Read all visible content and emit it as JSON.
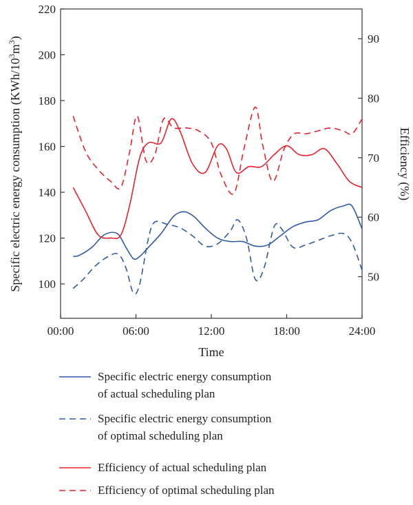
{
  "chart_data": {
    "type": "line",
    "xlabel": "Time",
    "ylabel_left": "Specific electric energy consumption (KWh/10³m³)",
    "ylabel_left_parts": {
      "main": "Specific electric energy consumption (KWh/10",
      "sup1": "3",
      "mid": "m",
      "sup2": "3",
      "end": ")"
    },
    "ylabel_right": "Efficiency (%)",
    "x_ticks": [
      "00:00",
      "06:00",
      "12:00",
      "18:00",
      "24:00"
    ],
    "x_tick_hours": [
      0,
      6,
      12,
      18,
      24
    ],
    "xlim": [
      0,
      24
    ],
    "ylim_left": [
      85,
      220
    ],
    "ylim_right": [
      43,
      95
    ],
    "y_ticks_left": [
      100,
      120,
      140,
      160,
      180,
      200,
      220
    ],
    "y_ticks_right": [
      50,
      60,
      70,
      80,
      90
    ],
    "series": [
      {
        "name": "Specific electric energy consumption of actual scheduling plan",
        "legend_lines": [
          "Specific electric energy consumption",
          "of actual scheduling plan"
        ],
        "axis": "left",
        "color": "#2f59a8",
        "dash": "solid",
        "x": [
          1,
          1.5,
          2.5,
          3.5,
          4.5,
          5.2,
          5.8,
          6.3,
          7.0,
          8.0,
          9.0,
          9.8,
          10.6,
          11.5,
          12.5,
          13.5,
          14.5,
          15.5,
          16.5,
          17.5,
          18.5,
          19.5,
          20.5,
          21.5,
          22.5,
          23.2,
          24
        ],
        "y": [
          112,
          112.5,
          116,
          121.5,
          122,
          116,
          111,
          112,
          116,
          122,
          129.5,
          131.5,
          129.5,
          124.5,
          120,
          118.5,
          118.5,
          116.5,
          117,
          121,
          125,
          127,
          128,
          132,
          134,
          134,
          124
        ]
      },
      {
        "name": "Specific electric energy consumption of optimal scheduling plan",
        "legend_lines": [
          "Specific electric energy consumption",
          "of optimal scheduling plan"
        ],
        "axis": "left",
        "color": "#2f59a8",
        "dash": "dashed",
        "x": [
          1,
          1.8,
          2.8,
          3.8,
          4.6,
          5.2,
          5.8,
          6.3,
          7.0,
          7.5,
          8.5,
          9.5,
          10.5,
          11.5,
          12.5,
          13.5,
          14.1,
          14.8,
          15.5,
          16.2,
          17.0,
          17.6,
          18.5,
          19.5,
          20.5,
          21.5,
          22.5,
          23.2,
          24
        ],
        "y": [
          98,
          102,
          108,
          112,
          113,
          107,
          96,
          100,
          120,
          127,
          126,
          124.5,
          121,
          116.5,
          117.5,
          123,
          128,
          120,
          102,
          107,
          125,
          124,
          116,
          117,
          119,
          121,
          122,
          118,
          106
        ]
      },
      {
        "name": "Efficiency of actual scheduling plan",
        "legend_lines": [
          "Efficiency of actual scheduling plan"
        ],
        "axis": "right",
        "color": "#e8202a",
        "dash": "solid",
        "x": [
          1,
          2,
          3,
          4,
          4.8,
          5.5,
          6.3,
          7.0,
          8.0,
          8.8,
          9.5,
          10.5,
          11.5,
          12.5,
          13.2,
          14.0,
          15.0,
          16.0,
          17.0,
          18.0,
          19.0,
          20.0,
          21.0,
          22.0,
          23.0,
          24
        ],
        "y": [
          65,
          61,
          57,
          56.5,
          57,
          62,
          70,
          72.5,
          72.5,
          76.5,
          74.5,
          69,
          67.5,
          72,
          71.5,
          67.5,
          68.5,
          68.5,
          70.5,
          72,
          70.5,
          70.5,
          71.5,
          69,
          66,
          65
        ]
      },
      {
        "name": "Efficiency of optimal scheduling plan",
        "legend_lines": [
          "Efficiency of optimal scheduling plan"
        ],
        "axis": "right",
        "color": "#e8202a",
        "dash": "dashed",
        "x": [
          1,
          2,
          3,
          4,
          4.8,
          5.5,
          6.1,
          6.8,
          7.5,
          8.2,
          9.0,
          10.0,
          11.0,
          12.0,
          12.8,
          13.8,
          14.6,
          15.5,
          16.1,
          16.9,
          17.8,
          18.6,
          19.5,
          20.5,
          21.5,
          22.5,
          23.2,
          24
        ],
        "y": [
          77,
          71,
          68,
          66,
          65,
          71,
          77,
          69.5,
          70.5,
          76.5,
          75,
          75,
          74.5,
          72.5,
          67,
          64,
          71.5,
          78.5,
          72,
          66,
          71.5,
          74,
          74,
          74.5,
          75,
          74.5,
          74,
          76.5
        ]
      }
    ],
    "legend_position": "bottom",
    "grid": false
  }
}
